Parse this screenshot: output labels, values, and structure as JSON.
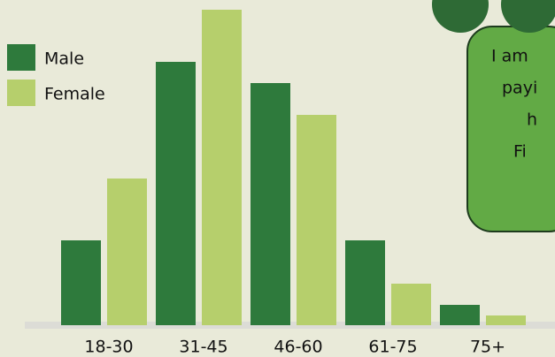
{
  "chart_data": {
    "type": "bar",
    "categories": [
      "18-30",
      "31-45",
      "46-60",
      "61-75",
      "75+"
    ],
    "series": [
      {
        "name": "Male",
        "color": "#2e7a3c",
        "values": [
          96,
          298,
          274,
          96,
          23
        ]
      },
      {
        "name": "Female",
        "color": "#b6cf6c",
        "values": [
          166,
          357,
          238,
          47,
          11
        ]
      }
    ],
    "ylim": [
      0,
      360
    ],
    "annotation": [
      "I am",
      "payi",
      "h",
      "Fi"
    ]
  }
}
